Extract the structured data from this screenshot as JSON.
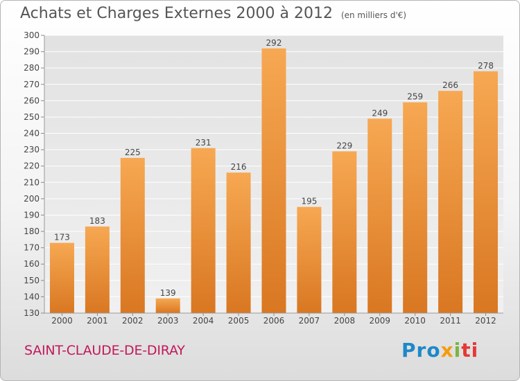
{
  "header": {
    "title": "Achats et Charges Externes 2000 à 2012",
    "subtitle": "(en milliers d'€)"
  },
  "footer": {
    "city": "SAINT-CLAUDE-DE-DIRAY",
    "brand_parts": [
      "Pro",
      "x",
      "i",
      "ti"
    ]
  },
  "colors": {
    "bar_light": "#f7a852",
    "bar_dark": "#d97722",
    "title_text": "#555555",
    "city_text": "#c2185b",
    "grid": "#ffffff"
  },
  "chart_data": {
    "type": "bar",
    "title": "Achats et Charges Externes 2000 à 2012",
    "subtitle": "(en milliers d'€)",
    "xlabel": "",
    "ylabel": "",
    "categories": [
      "2000",
      "2001",
      "2002",
      "2003",
      "2004",
      "2005",
      "2006",
      "2007",
      "2008",
      "2009",
      "2010",
      "2011",
      "2012"
    ],
    "values": [
      173,
      183,
      225,
      139,
      231,
      216,
      292,
      195,
      229,
      249,
      259,
      266,
      278
    ],
    "ylim": [
      130,
      300
    ],
    "yticks": [
      130,
      140,
      150,
      160,
      170,
      180,
      190,
      200,
      210,
      220,
      230,
      240,
      250,
      260,
      270,
      280,
      290,
      300
    ],
    "grid": true,
    "legend": "none",
    "data_labels": true
  }
}
